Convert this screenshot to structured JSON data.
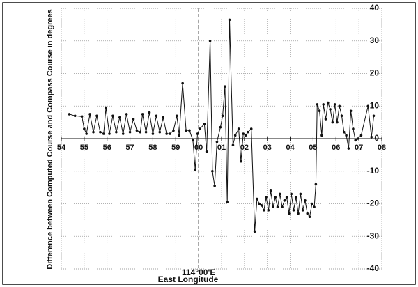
{
  "chart_data": {
    "type": "line",
    "y_label": "Difference between Computed Course and Compass Course  in degrees",
    "x_label": "East Longitude",
    "annotation": {
      "x": 60,
      "label": "114°00'E"
    },
    "color": "#111111",
    "grid": true,
    "xlim": [
      54,
      68
    ],
    "xticks": [
      54,
      55,
      56,
      57,
      58,
      59,
      {
        "value": 60,
        "label": "00"
      },
      {
        "value": 61,
        "label": "01"
      },
      {
        "value": 62,
        "label": "02"
      },
      {
        "value": 63,
        "label": "03"
      },
      {
        "value": 64,
        "label": "04"
      },
      {
        "value": 65,
        "label": "05"
      },
      {
        "value": 66,
        "label": "06"
      },
      {
        "value": 67,
        "label": "07"
      },
      {
        "value": 68,
        "label": "08"
      }
    ],
    "ylim": [
      -40,
      40
    ],
    "yticks": [
      -40,
      -30,
      -20,
      -10,
      0,
      10,
      20,
      30,
      40
    ],
    "x": [
      54.35,
      54.6,
      54.9,
      55.0,
      55.1,
      55.25,
      55.4,
      55.55,
      55.7,
      55.85,
      55.95,
      56.1,
      56.25,
      56.4,
      56.55,
      56.7,
      56.85,
      57.0,
      57.15,
      57.3,
      57.45,
      57.55,
      57.7,
      57.85,
      58.0,
      58.15,
      58.3,
      58.45,
      58.6,
      58.75,
      58.9,
      59.05,
      59.15,
      59.3,
      59.45,
      59.6,
      59.75,
      59.85,
      59.95,
      60.05,
      60.25,
      60.35,
      60.5,
      60.6,
      60.7,
      60.8,
      60.95,
      61.05,
      61.15,
      61.25,
      61.35,
      61.5,
      61.6,
      61.75,
      61.85,
      61.95,
      62.05,
      62.15,
      62.3,
      62.45,
      62.55,
      62.65,
      62.75,
      62.85,
      62.95,
      63.05,
      63.15,
      63.25,
      63.35,
      63.45,
      63.55,
      63.65,
      63.75,
      63.85,
      63.95,
      64.05,
      64.15,
      64.25,
      64.35,
      64.45,
      64.55,
      64.65,
      64.75,
      64.85,
      64.95,
      65.05,
      65.12,
      65.18,
      65.28,
      65.38,
      65.45,
      65.55,
      65.65,
      65.75,
      65.85,
      65.95,
      66.05,
      66.15,
      66.25,
      66.35,
      66.45,
      66.55,
      66.65,
      66.75,
      66.85,
      66.95,
      67.1,
      67.4,
      67.55,
      67.65
    ],
    "values": [
      7.5,
      7,
      6.8,
      3,
      1.5,
      7.5,
      2,
      7,
      2,
      1.5,
      9.5,
      1.5,
      7,
      2,
      6.5,
      1.5,
      7.5,
      2,
      6,
      2.5,
      2,
      7.5,
      2,
      8,
      1.5,
      7,
      2,
      6.5,
      1.5,
      1.5,
      2.5,
      7,
      1,
      17,
      2.5,
      2.5,
      -0.5,
      -9.5,
      1.5,
      3,
      4.5,
      -4,
      30,
      -10,
      -14.5,
      -1,
      3.5,
      7,
      16,
      -19.5,
      36.5,
      -2,
      1,
      3,
      -7,
      1.5,
      1,
      2,
      3,
      -28.5,
      -18.5,
      -20,
      -20.5,
      -22,
      -18,
      -22,
      -16,
      -21,
      -18,
      -21,
      -17,
      -21,
      -19,
      -18,
      -23,
      -17,
      -22,
      -18,
      -23,
      -17,
      -22,
      -19,
      -23,
      -24,
      -20,
      -21,
      -14,
      10.5,
      8.5,
      1,
      10.5,
      6,
      11,
      9,
      5,
      10.5,
      5,
      10,
      7,
      2,
      1,
      -3,
      8.5,
      3,
      -0.5,
      0,
      1,
      10,
      0.5,
      7
    ]
  }
}
